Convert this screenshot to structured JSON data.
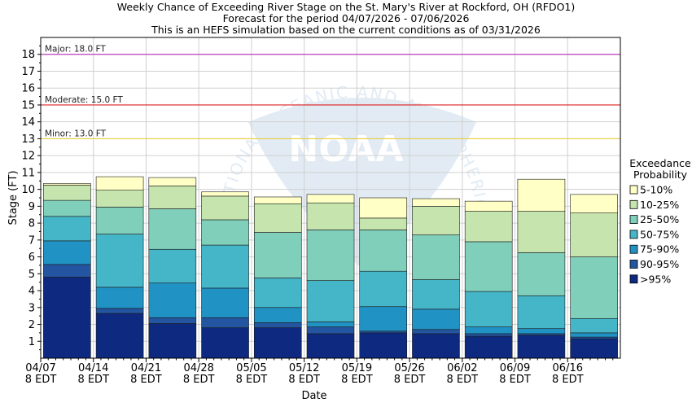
{
  "title": {
    "line1": "Weekly Chance of Exceeding River Stage on the St. Mary's River at Rockford, OH (RFDO1)",
    "line2": "Forecast for the period 04/07/2026 - 07/06/2026",
    "line3": "This is an HEFS simulation based on the current conditions as of 03/31/2026"
  },
  "watermark": {
    "logo_text": "NOAA",
    "ring_text": "NATIONAL OCEANIC AND ATMOSPHERIC ADMINISTRATION"
  },
  "chart_data": {
    "type": "bar",
    "subtype": "stacked-range",
    "xlabel": "Date",
    "ylabel": "Stage (FT)",
    "ylim": [
      0,
      19
    ],
    "yticks": [
      1,
      2,
      3,
      4,
      5,
      6,
      7,
      8,
      9,
      10,
      11,
      12,
      13,
      14,
      15,
      16,
      17,
      18
    ],
    "grid": true,
    "x_ticks": [
      {
        "line1": "04/07",
        "line2": "8 EDT"
      },
      {
        "line1": "04/14",
        "line2": "8 EDT"
      },
      {
        "line1": "04/21",
        "line2": "8 EDT"
      },
      {
        "line1": "04/28",
        "line2": "8 EDT"
      },
      {
        "line1": "05/05",
        "line2": "8 EDT"
      },
      {
        "line1": "05/12",
        "line2": "8 EDT"
      },
      {
        "line1": "05/19",
        "line2": "8 EDT"
      },
      {
        "line1": "05/26",
        "line2": "8 EDT"
      },
      {
        "line1": "06/02",
        "line2": "8 EDT"
      },
      {
        "line1": "06/09",
        "line2": "8 EDT"
      },
      {
        "line1": "06/16",
        "line2": "8 EDT"
      }
    ],
    "weeks": [
      "04/07",
      "04/14",
      "04/21",
      "04/28",
      "05/05",
      "05/12",
      "05/19",
      "05/26",
      "06/02",
      "06/09",
      "06/16"
    ],
    "legend": {
      "title_line1": "Exceedance",
      "title_line2": "Probability",
      "placement": "right"
    },
    "series": [
      {
        "name": ">95%",
        "color": "#0e2a80",
        "values": [
          4.8,
          2.65,
          2.05,
          1.8,
          1.8,
          1.45,
          1.5,
          1.45,
          1.3,
          1.35,
          1.15
        ]
      },
      {
        "name": "90-95%",
        "color": "#2455a0",
        "values": [
          5.55,
          2.95,
          2.4,
          2.4,
          2.1,
          1.85,
          1.6,
          1.7,
          1.45,
          1.45,
          1.25
        ]
      },
      {
        "name": "75-90%",
        "color": "#2192c4",
        "values": [
          6.95,
          4.2,
          4.45,
          4.15,
          3.0,
          2.15,
          3.05,
          2.9,
          1.85,
          1.75,
          1.5
        ]
      },
      {
        "name": "50-75%",
        "color": "#45b5c8",
        "values": [
          8.4,
          7.35,
          6.45,
          6.7,
          4.75,
          4.6,
          5.15,
          4.65,
          3.95,
          3.7,
          2.35
        ]
      },
      {
        "name": "25-50%",
        "color": "#80cfbb",
        "values": [
          9.35,
          8.95,
          8.85,
          8.2,
          7.45,
          7.6,
          7.6,
          7.3,
          6.9,
          6.25,
          6.0
        ]
      },
      {
        "name": "10-25%",
        "color": "#c6e5ae",
        "values": [
          10.25,
          9.95,
          10.2,
          9.6,
          9.15,
          9.2,
          8.3,
          9.0,
          8.7,
          8.7,
          8.6
        ]
      },
      {
        "name": "5-10%",
        "color": "#ffffc6",
        "values": [
          10.35,
          10.75,
          10.7,
          9.85,
          9.55,
          9.7,
          9.5,
          9.45,
          9.3,
          10.6,
          9.7
        ]
      }
    ],
    "thresholds": [
      {
        "label": "Major: 18.0 FT",
        "value": 18.0,
        "color": "#c040c0"
      },
      {
        "label": "Moderate: 15.0 FT",
        "value": 15.0,
        "color": "#dd2020"
      },
      {
        "label": "Minor: 13.0 FT",
        "value": 13.0,
        "color": "#e8d040"
      }
    ]
  }
}
